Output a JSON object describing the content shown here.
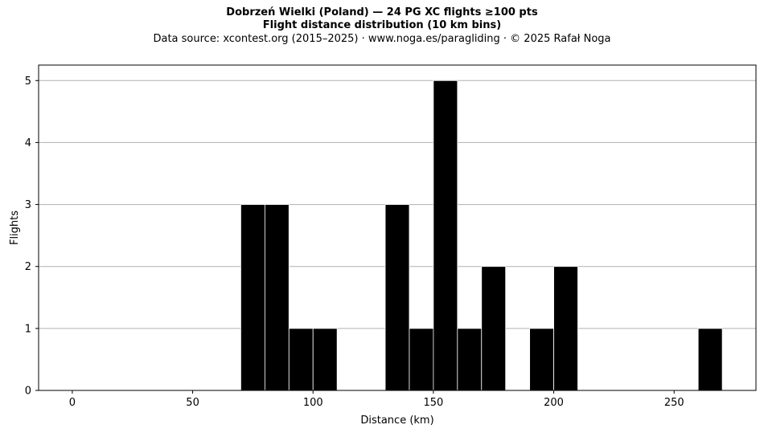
{
  "chart_data": {
    "type": "bar",
    "title": "Dobrzeń Wielki (Poland)  —  24 PG XC flights ≥100 pts",
    "subtitle": "Flight distance distribution (10 km bins)",
    "source": "Data source: xcontest.org (2015–2025)  ·  www.noga.es/paragliding  ·  © 2025 Rafał Noga",
    "xlabel": "Distance (km)",
    "ylabel": "Flights",
    "xlim": [
      -14,
      284
    ],
    "ylim": [
      0,
      5.25
    ],
    "xticks": [
      0,
      50,
      100,
      150,
      200,
      250
    ],
    "yticks": [
      0,
      1,
      2,
      3,
      4,
      5
    ],
    "grid": "y",
    "bin_width": 10,
    "bins": [
      {
        "start": 70,
        "value": 3
      },
      {
        "start": 80,
        "value": 3
      },
      {
        "start": 90,
        "value": 1
      },
      {
        "start": 100,
        "value": 1
      },
      {
        "start": 130,
        "value": 3
      },
      {
        "start": 140,
        "value": 1
      },
      {
        "start": 150,
        "value": 5
      },
      {
        "start": 160,
        "value": 1
      },
      {
        "start": 170,
        "value": 2
      },
      {
        "start": 190,
        "value": 1
      },
      {
        "start": 200,
        "value": 2
      },
      {
        "start": 260,
        "value": 1
      }
    ],
    "bar_color": "#000000",
    "edge_color": "#ffffff",
    "grid_color": "#b0b0b0"
  }
}
